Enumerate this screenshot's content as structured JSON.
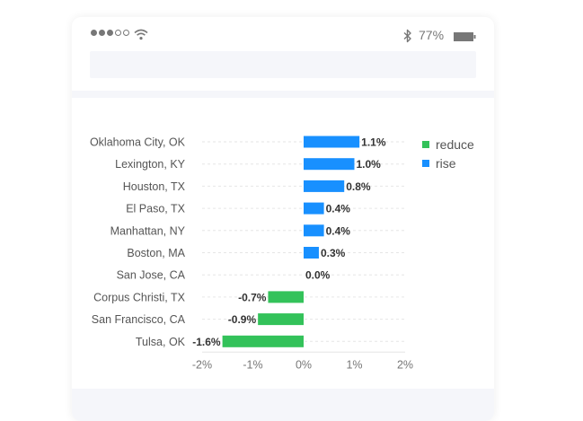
{
  "status_bar": {
    "battery_percent": "77%",
    "signal_bars_filled": 3,
    "signal_bars_total": 5,
    "icons": [
      "signal-dots-icon",
      "wifi-icon",
      "bluetooth-icon",
      "battery-icon"
    ]
  },
  "colors": {
    "reduce": "#33c25a",
    "rise": "#1890ff",
    "grid": "#e6e6e6",
    "label": "#555555",
    "value_label": "#333333",
    "separator": "#f5f6fa"
  },
  "legend": {
    "items": [
      {
        "label": "reduce",
        "color": "#33c25a"
      },
      {
        "label": "rise",
        "color": "#1890ff"
      }
    ]
  },
  "chart_data": {
    "type": "bar",
    "orientation": "horizontal",
    "categories": [
      "Oklahoma City, OK",
      "Lexington, KY",
      "Houston, TX",
      "El Paso, TX",
      "Manhattan, NY",
      "Boston, MA",
      "San Jose, CA",
      "Corpus Christi, TX",
      "San Francisco, CA",
      "Tulsa, OK"
    ],
    "values": [
      1.1,
      1.0,
      0.8,
      0.4,
      0.4,
      0.3,
      0.0,
      -0.7,
      -0.9,
      -1.6
    ],
    "value_labels": [
      "1.1%",
      "1.0%",
      "0.8%",
      "0.4%",
      "0.4%",
      "0.3%",
      "0.0%",
      "-0.7%",
      "-0.9%",
      "-1.6%"
    ],
    "series": [
      {
        "name": "reduce",
        "color": "#33c25a"
      },
      {
        "name": "rise",
        "color": "#1890ff"
      }
    ],
    "x_ticks": [
      -2,
      -1,
      0,
      1,
      2
    ],
    "x_tick_labels": [
      "-2%",
      "-1%",
      "0%",
      "1%",
      "2%"
    ],
    "xlim": [
      -2,
      2
    ],
    "grid": "dashed horizontal per category",
    "legend_position": "top-right",
    "title": "",
    "xlabel": "",
    "ylabel": ""
  }
}
